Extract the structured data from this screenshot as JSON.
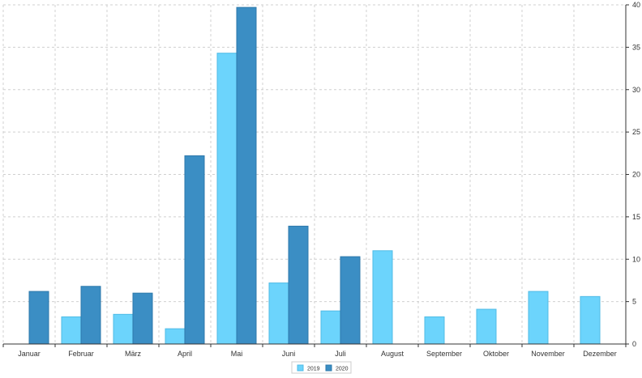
{
  "chart_data": {
    "type": "bar",
    "categories": [
      "Januar",
      "Februar",
      "März",
      "April",
      "Mai",
      "Juni",
      "Juli",
      "August",
      "September",
      "Oktober",
      "November",
      "Dezember"
    ],
    "series": [
      {
        "name": "2019",
        "values": [
          0,
          3.2,
          3.5,
          1.8,
          34.3,
          7.2,
          3.9,
          11.0,
          3.2,
          4.1,
          6.2,
          5.6
        ],
        "color": "#6cd4fc",
        "stroke": "#4fbbe6"
      },
      {
        "name": "2020",
        "values": [
          6.2,
          6.8,
          6.0,
          22.2,
          39.7,
          13.9,
          10.3,
          0,
          0,
          0,
          0,
          0
        ],
        "color": "#3b8ec4",
        "stroke": "#2c78ab"
      }
    ],
    "y_ticks": [
      "0",
      "5",
      "10",
      "15",
      "20",
      "25",
      "30",
      "35",
      "40"
    ],
    "ylim": [
      0,
      40
    ],
    "y_axis_side": "right",
    "grid": true,
    "legend_position": "bottom-center"
  }
}
